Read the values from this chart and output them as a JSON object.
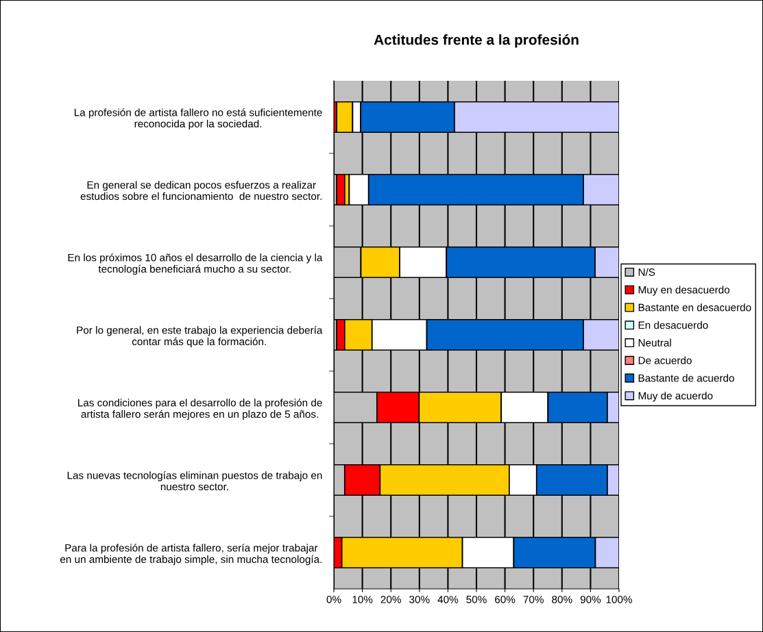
{
  "chart_data": {
    "type": "bar",
    "orientation": "horizontal",
    "stacked": true,
    "title": "Actitudes frente a la profesión",
    "categories": [
      "La profesión de artista fallero no está suficientemente\nreconocida por la sociedad.",
      "En general se dedican pocos esfuerzos a realizar\nestudios sobre el funcionamiento  de nuestro sector.",
      "En los próximos 10 años el desarrollo de la ciencia y la\ntecnología beneficiará mucho a su sector.",
      "Por lo general, en este trabajo la experiencia debería\ncontar más que la formación.",
      "Las condiciones para el desarrollo de la profesión de\nartista fallero serán mejores en un plazo de 5 años.",
      "Las nuevas tecnologías eliminan puestos de trabajo en\nnuestro sector.",
      "Para la profesión de artista fallero, sería mejor trabajar\nen un ambiente de trabajo simple, sin mucha tecnología."
    ],
    "series": [
      {
        "name": "N/S",
        "color": "#c0c0c0",
        "values": [
          0,
          1,
          9.5,
          1,
          15.1,
          3.8,
          0
        ]
      },
      {
        "name": "Muy en desacuerdo",
        "color": "#ff0000",
        "values": [
          1,
          2.8,
          0,
          2.8,
          14.8,
          12.4,
          2.8
        ]
      },
      {
        "name": "Bastante en desacuerdo",
        "color": "#ffcc00",
        "values": [
          5.6,
          1.6,
          13.6,
          9.6,
          28.8,
          45.3,
          42.3
        ]
      },
      {
        "name": "En desacuerdo",
        "color": "#ccffff",
        "values": [
          0,
          0,
          0,
          0,
          0,
          0,
          0
        ]
      },
      {
        "name": "Neutral",
        "color": "#ffffff",
        "values": [
          2.8,
          6.8,
          16.4,
          19.2,
          16.4,
          9.6,
          18
        ]
      },
      {
        "name": "De acuerdo",
        "color": "#ff8080",
        "values": [
          0,
          0,
          0,
          0,
          0,
          0,
          0
        ]
      },
      {
        "name": "Bastante de acuerdo",
        "color": "#0066cc",
        "values": [
          32.9,
          75.3,
          52.1,
          54.9,
          20.8,
          24.8,
          28.6
        ]
      },
      {
        "name": "Muy de acuerdo",
        "color": "#ccccff",
        "values": [
          57.7,
          12.5,
          8.4,
          12.5,
          4.1,
          4.1,
          8.3
        ]
      }
    ],
    "xlim": [
      0,
      100
    ],
    "xticks": [
      {
        "value": 0,
        "label": "0%"
      },
      {
        "value": 10,
        "label": "10%"
      },
      {
        "value": 20,
        "label": "20%"
      },
      {
        "value": 30,
        "label": "30%"
      },
      {
        "value": 40,
        "label": "40%"
      },
      {
        "value": 50,
        "label": "50%"
      },
      {
        "value": 60,
        "label": "60%"
      },
      {
        "value": 70,
        "label": "70%"
      },
      {
        "value": 80,
        "label": "80%"
      },
      {
        "value": 90,
        "label": "90%"
      },
      {
        "value": 100,
        "label": "100%"
      }
    ],
    "grid": "x",
    "legend": "right"
  }
}
